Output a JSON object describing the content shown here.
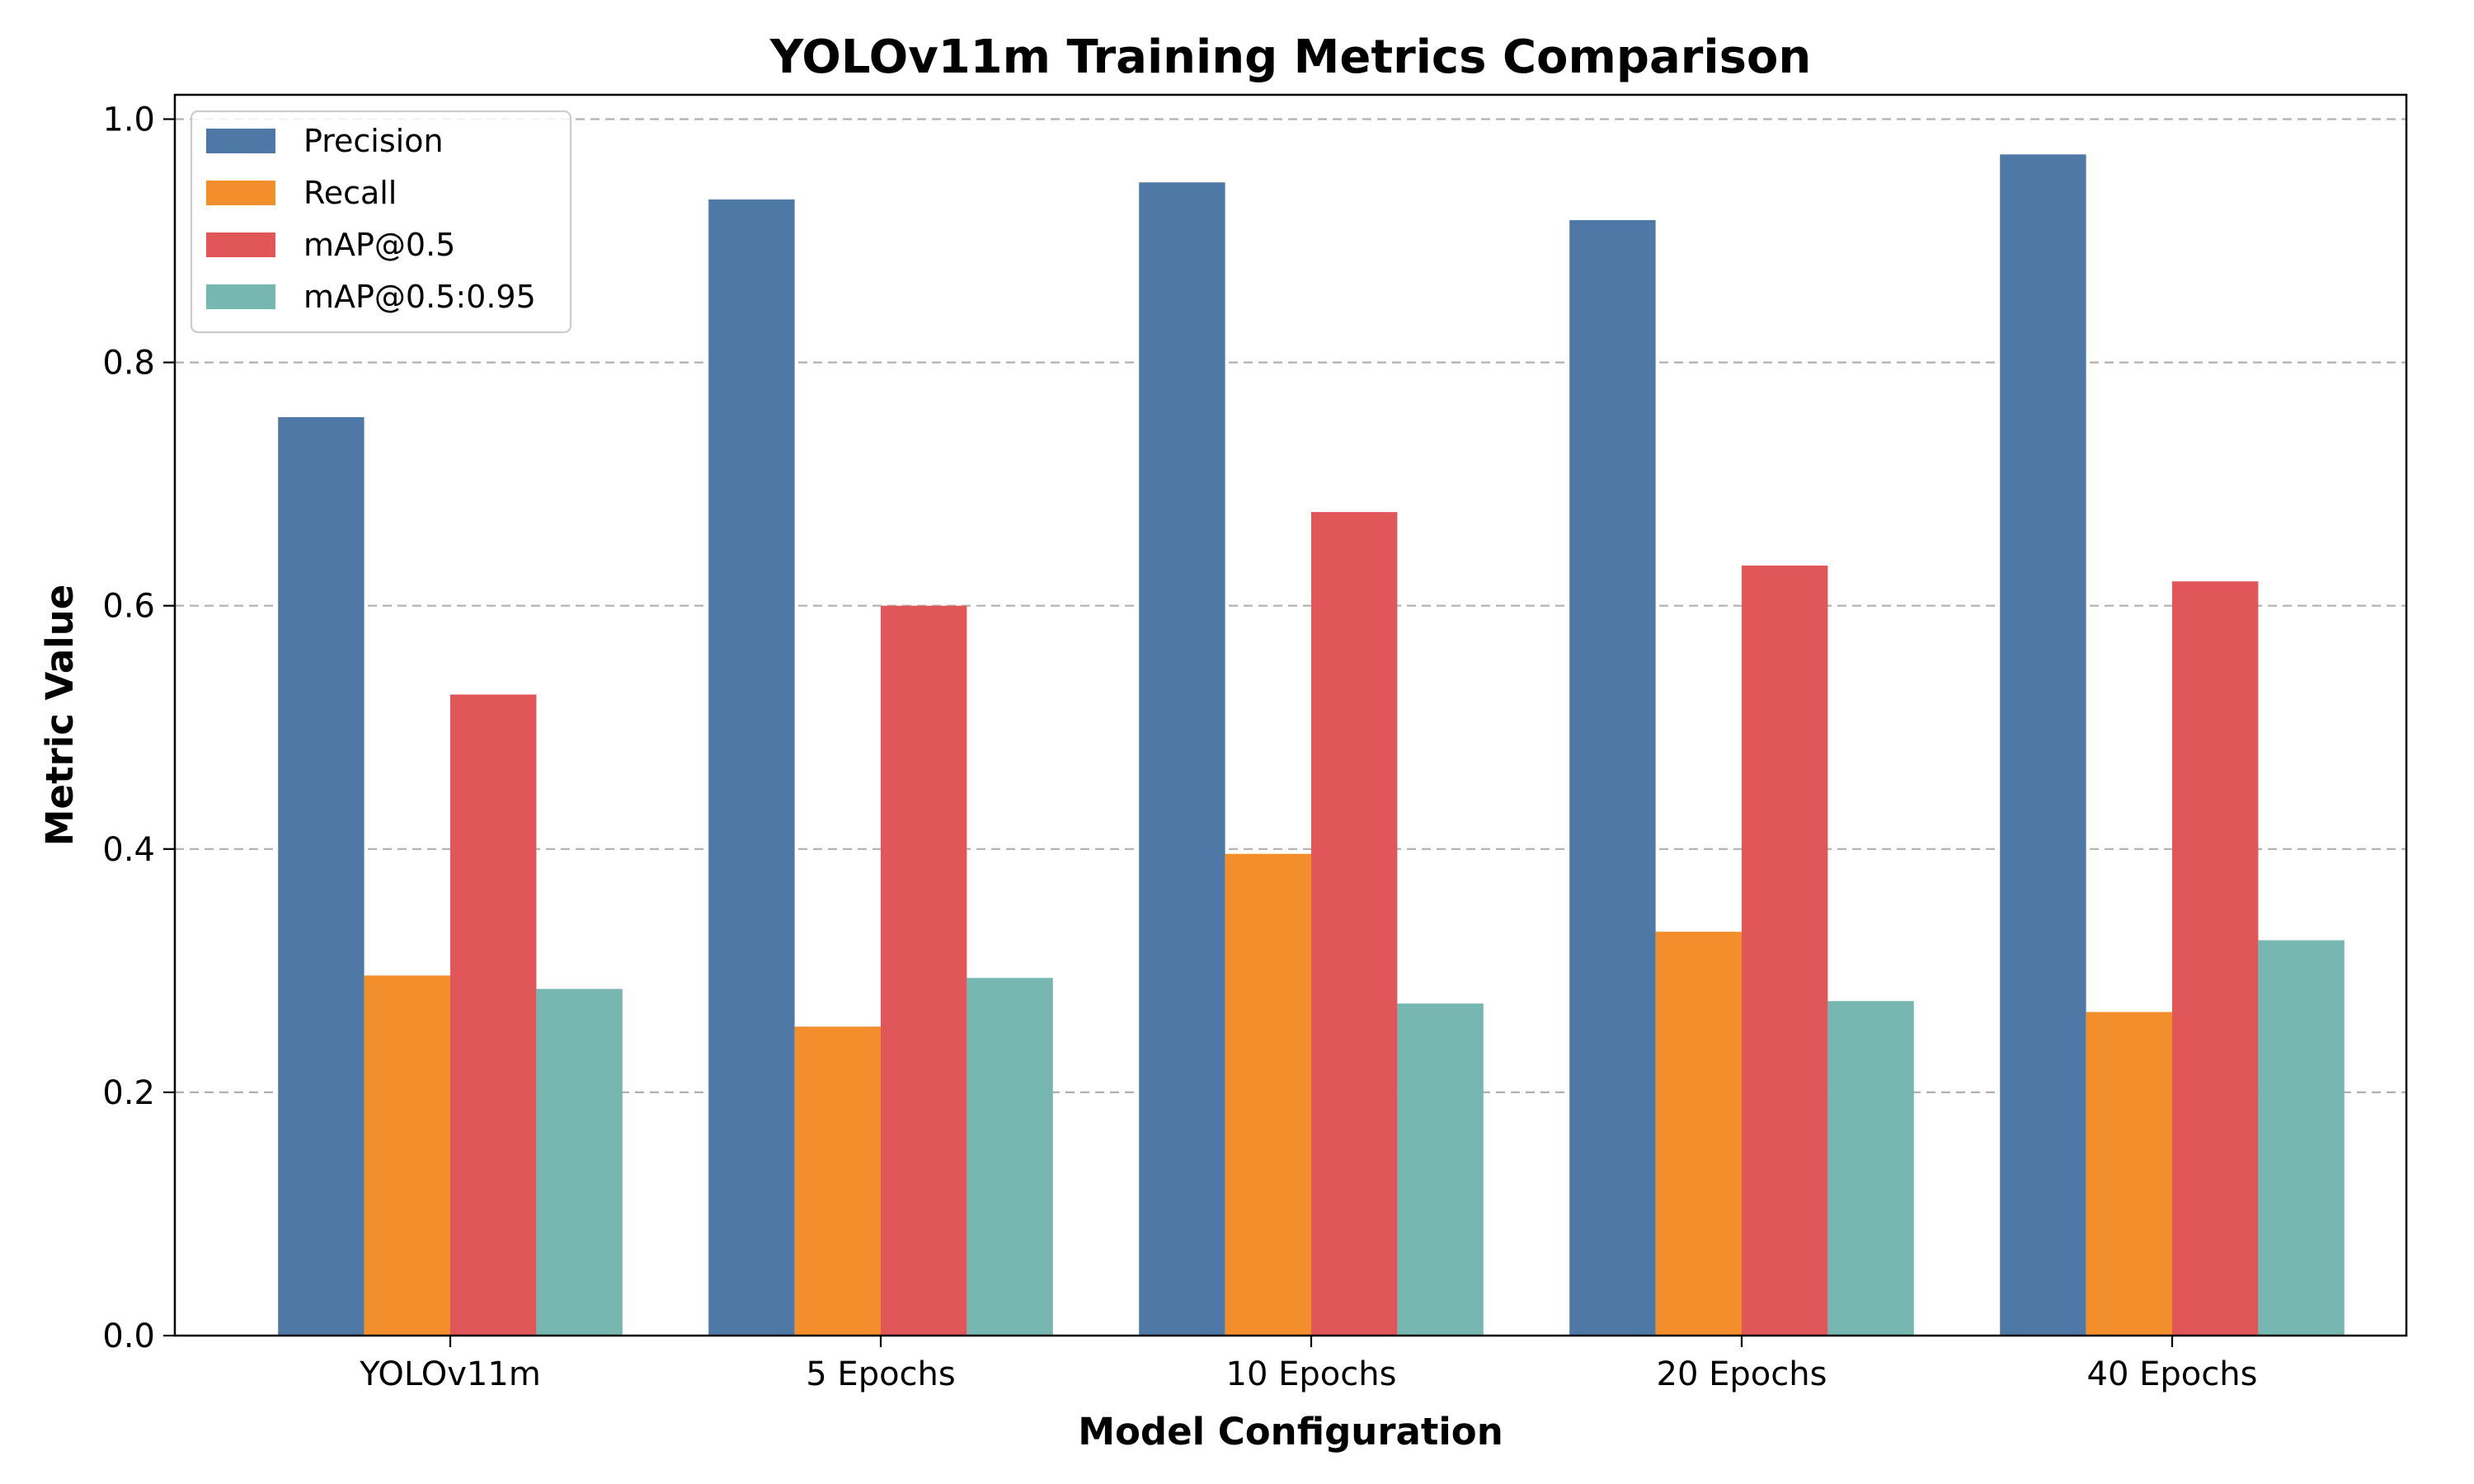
{
  "chart_data": {
    "type": "bar",
    "title": "YOLOv11m Training Metrics Comparison",
    "xlabel": "Model Configuration",
    "ylabel": "Metric Value",
    "ylim": [
      0,
      1.02
    ],
    "yticks": [
      0.0,
      0.2,
      0.4,
      0.6,
      0.8,
      1.0
    ],
    "ytick_labels": [
      "0.0",
      "0.2",
      "0.4",
      "0.6",
      "0.8",
      "1.0"
    ],
    "grid": "y-dashed",
    "legend_position": "top-left",
    "categories": [
      "YOLOv11m",
      "5 Epochs",
      "10 Epochs",
      "20 Epochs",
      "40 Epochs"
    ],
    "series": [
      {
        "name": "Precision",
        "color": "#4e79a7",
        "values": [
          0.755,
          0.934,
          0.948,
          0.917,
          0.971
        ]
      },
      {
        "name": "Recall",
        "color": "#f28e2b",
        "values": [
          0.296,
          0.254,
          0.396,
          0.332,
          0.266
        ]
      },
      {
        "name": "mAP@0.5",
        "color": "#e15759",
        "values": [
          0.527,
          0.6,
          0.677,
          0.633,
          0.62
        ]
      },
      {
        "name": "mAP@0.5:0.95",
        "color": "#76b7b2",
        "values": [
          0.285,
          0.294,
          0.273,
          0.275,
          0.325
        ]
      }
    ]
  }
}
